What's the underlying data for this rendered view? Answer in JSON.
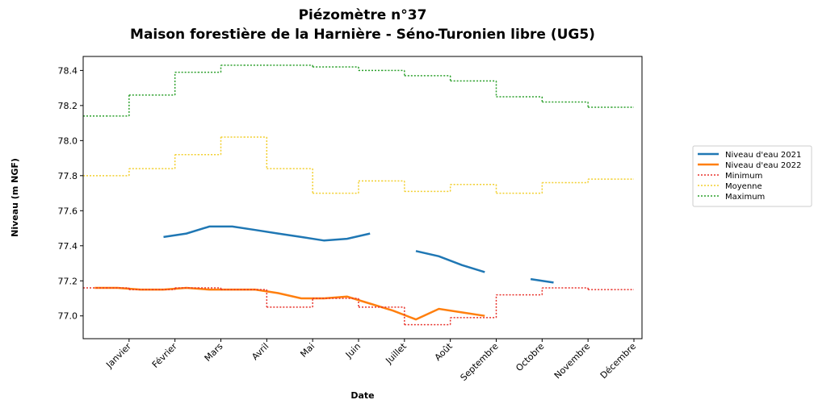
{
  "chart_data": {
    "type": "line",
    "title": "Piézomètre n°37",
    "subtitle": "Maison forestière de la Harnière - Séno-Turonien libre (UG5)",
    "xlabel": "Date",
    "ylabel": "Niveau (m NGF)",
    "categories": [
      null,
      "Janvier",
      null,
      "Février",
      null,
      "Mars",
      null,
      "Avril",
      null,
      "Mai",
      null,
      "Juin",
      null,
      "Juillet",
      null,
      "Août",
      null,
      "Septembre",
      null,
      "Octobre",
      null,
      "Novembre",
      null,
      "Décembre"
    ],
    "ylim": [
      76.87,
      78.48
    ],
    "yticks": [
      {
        "value": 77.0,
        "label": "77.0"
      },
      {
        "value": 77.2,
        "label": "77.2"
      },
      {
        "value": 77.4,
        "label": "77.4"
      },
      {
        "value": 77.6,
        "label": "77.6"
      },
      {
        "value": 77.8,
        "label": "77.8"
      },
      {
        "value": 78.0,
        "label": "78.0"
      },
      {
        "value": 78.2,
        "label": "78.2"
      },
      {
        "value": 78.4,
        "label": "78.4"
      }
    ],
    "legend": "right",
    "series": [
      {
        "name": "Niveau d'eau 2021",
        "color": "#1f77b4",
        "linestyle": "solid",
        "values": [
          null,
          null,
          null,
          77.45,
          77.47,
          77.51,
          77.51,
          77.49,
          77.47,
          77.45,
          77.43,
          77.44,
          77.47,
          null,
          77.37,
          77.34,
          77.29,
          77.25,
          null,
          77.21,
          77.19,
          null,
          null,
          null
        ]
      },
      {
        "name": "Niveau d'eau 2022",
        "color": "#ff7f0e",
        "linestyle": "solid",
        "values": [
          77.16,
          77.16,
          77.15,
          77.15,
          77.16,
          77.15,
          77.15,
          77.15,
          77.13,
          77.1,
          77.1,
          77.11,
          77.07,
          77.03,
          76.98,
          77.04,
          77.02,
          77.0,
          null,
          null,
          null,
          null,
          null,
          null
        ]
      },
      {
        "name": "Minimum",
        "color": "#e8322b",
        "linestyle": "dotted",
        "values": [
          77.16,
          77.16,
          77.15,
          77.15,
          77.16,
          77.16,
          77.15,
          77.15,
          77.05,
          77.05,
          77.1,
          77.1,
          77.05,
          77.05,
          76.95,
          76.95,
          76.99,
          76.99,
          77.12,
          77.12,
          77.16,
          77.16,
          77.15,
          77.15
        ]
      },
      {
        "name": "Moyenne",
        "color": "#f2cf2f",
        "linestyle": "dotted",
        "values": [
          77.8,
          77.8,
          77.84,
          77.84,
          77.92,
          77.92,
          78.02,
          78.02,
          77.84,
          77.84,
          77.7,
          77.7,
          77.77,
          77.77,
          77.71,
          77.71,
          77.75,
          77.75,
          77.7,
          77.7,
          77.76,
          77.76,
          77.78,
          77.78
        ]
      },
      {
        "name": "Maximum",
        "color": "#2ca02c",
        "linestyle": "dotted",
        "values": [
          78.14,
          78.14,
          78.26,
          78.26,
          78.39,
          78.39,
          78.43,
          78.43,
          78.43,
          78.43,
          78.42,
          78.42,
          78.4,
          78.4,
          78.37,
          78.37,
          78.34,
          78.34,
          78.25,
          78.25,
          78.22,
          78.22,
          78.19,
          78.19
        ]
      }
    ]
  }
}
